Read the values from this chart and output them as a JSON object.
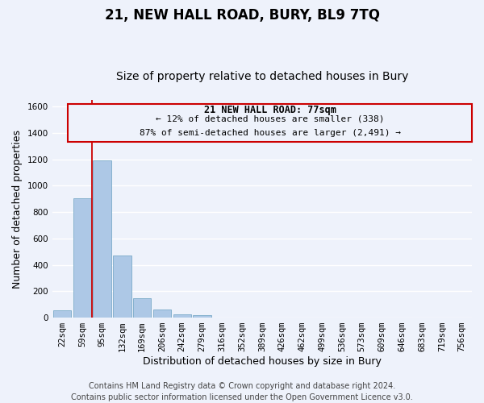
{
  "title": "21, NEW HALL ROAD, BURY, BL9 7TQ",
  "subtitle": "Size of property relative to detached houses in Bury",
  "xlabel": "Distribution of detached houses by size in Bury",
  "ylabel": "Number of detached properties",
  "bin_labels": [
    "22sqm",
    "59sqm",
    "95sqm",
    "132sqm",
    "169sqm",
    "206sqm",
    "242sqm",
    "279sqm",
    "316sqm",
    "352sqm",
    "389sqm",
    "426sqm",
    "462sqm",
    "499sqm",
    "536sqm",
    "573sqm",
    "609sqm",
    "646sqm",
    "683sqm",
    "719sqm",
    "756sqm"
  ],
  "bar_values": [
    55,
    905,
    1190,
    470,
    150,
    60,
    25,
    20,
    0,
    0,
    0,
    0,
    0,
    0,
    0,
    0,
    0,
    0,
    0,
    0,
    0
  ],
  "bar_color": "#adc8e6",
  "bar_edge_color": "#7aaac8",
  "marker_label": "21 NEW HALL ROAD: 77sqm",
  "annotation_line1": "← 12% of detached houses are smaller (338)",
  "annotation_line2": "87% of semi-detached houses are larger (2,491) →",
  "vline_color": "#cc0000",
  "box_edge_color": "#cc0000",
  "ylim": [
    0,
    1650
  ],
  "yticks": [
    0,
    200,
    400,
    600,
    800,
    1000,
    1200,
    1400,
    1600
  ],
  "footer_line1": "Contains HM Land Registry data © Crown copyright and database right 2024.",
  "footer_line2": "Contains public sector information licensed under the Open Government Licence v3.0.",
  "bg_color": "#eef2fb",
  "grid_color": "#ffffff",
  "title_fontsize": 12,
  "subtitle_fontsize": 10,
  "axis_label_fontsize": 9,
  "tick_fontsize": 7.5,
  "annotation_fontsize": 8,
  "footer_fontsize": 7
}
